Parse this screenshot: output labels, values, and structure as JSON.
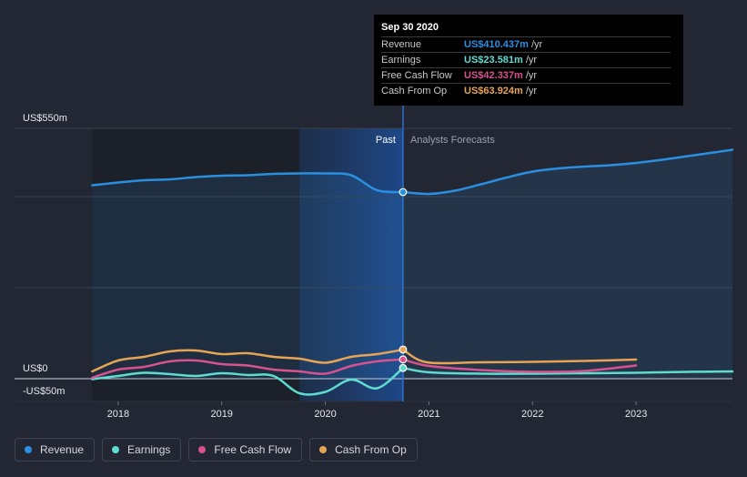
{
  "chart_data": {
    "type": "line",
    "y_unit_label_top": "US$550m",
    "y_zero_label": "US$0",
    "y_neg_label": "-US$50m",
    "ylim": [
      -50,
      550
    ],
    "xlim": [
      2017.0,
      2023.93
    ],
    "x_ticks": [
      {
        "value": 2018.0,
        "label": "2018"
      },
      {
        "value": 2019.0,
        "label": "2019"
      },
      {
        "value": 2020.0,
        "label": "2020"
      },
      {
        "value": 2021.0,
        "label": "2021"
      },
      {
        "value": 2022.0,
        "label": "2022"
      },
      {
        "value": 2023.0,
        "label": "2023"
      }
    ],
    "y_gridlines": [
      550,
      400,
      200,
      0
    ],
    "divider_x": 2020.75,
    "highlight_start_x": 2019.75,
    "past_label": "Past",
    "forecast_label": "Analysts Forecasts",
    "series": [
      {
        "name": "Revenue",
        "color": "#2b8fdf",
        "area": true,
        "points": [
          [
            2017.75,
            425
          ],
          [
            2018.0,
            431
          ],
          [
            2018.25,
            436
          ],
          [
            2018.5,
            438
          ],
          [
            2018.75,
            443
          ],
          [
            2019.0,
            446
          ],
          [
            2019.25,
            447
          ],
          [
            2019.5,
            450
          ],
          [
            2019.75,
            451
          ],
          [
            2020.0,
            451
          ],
          [
            2020.25,
            447
          ],
          [
            2020.5,
            414
          ],
          [
            2020.75,
            410
          ]
        ],
        "forecast": [
          [
            2020.75,
            410
          ],
          [
            2021.0,
            406
          ],
          [
            2021.25,
            413
          ],
          [
            2021.5,
            427
          ],
          [
            2021.75,
            442
          ],
          [
            2022.0,
            455
          ],
          [
            2022.25,
            462
          ],
          [
            2022.5,
            466
          ],
          [
            2022.75,
            469
          ],
          [
            2023.0,
            474
          ],
          [
            2023.25,
            481
          ],
          [
            2023.5,
            489
          ],
          [
            2023.75,
            497
          ],
          [
            2023.93,
            503
          ]
        ]
      },
      {
        "name": "Earnings",
        "color": "#5fdcd0",
        "points": [
          [
            2017.75,
            -1
          ],
          [
            2018.0,
            6
          ],
          [
            2018.25,
            13
          ],
          [
            2018.5,
            10
          ],
          [
            2018.75,
            6
          ],
          [
            2019.0,
            12
          ],
          [
            2019.25,
            8
          ],
          [
            2019.5,
            6
          ],
          [
            2019.75,
            -32
          ],
          [
            2020.0,
            -29
          ],
          [
            2020.25,
            -2
          ],
          [
            2020.5,
            -21
          ],
          [
            2020.75,
            23.581
          ]
        ],
        "forecast": [
          [
            2020.75,
            23.581
          ],
          [
            2021.0,
            14
          ],
          [
            2021.5,
            11
          ],
          [
            2022.0,
            11
          ],
          [
            2022.5,
            12
          ],
          [
            2023.0,
            13
          ],
          [
            2023.5,
            15
          ],
          [
            2023.93,
            16
          ]
        ]
      },
      {
        "name": "Free Cash Flow",
        "color": "#d8528e",
        "points": [
          [
            2017.75,
            2
          ],
          [
            2018.0,
            20
          ],
          [
            2018.25,
            26
          ],
          [
            2018.5,
            38
          ],
          [
            2018.75,
            40
          ],
          [
            2019.0,
            32
          ],
          [
            2019.25,
            29
          ],
          [
            2019.5,
            20
          ],
          [
            2019.75,
            16
          ],
          [
            2020.0,
            11
          ],
          [
            2020.25,
            28
          ],
          [
            2020.5,
            38
          ],
          [
            2020.75,
            42.337
          ]
        ],
        "forecast": [
          [
            2020.75,
            42.337
          ],
          [
            2021.0,
            28
          ],
          [
            2021.5,
            19
          ],
          [
            2022.0,
            15
          ],
          [
            2022.5,
            17
          ],
          [
            2023.0,
            29
          ]
        ]
      },
      {
        "name": "Cash From Op",
        "color": "#e8a455",
        "points": [
          [
            2017.75,
            16
          ],
          [
            2018.0,
            40
          ],
          [
            2018.25,
            48
          ],
          [
            2018.5,
            60
          ],
          [
            2018.75,
            62
          ],
          [
            2019.0,
            54
          ],
          [
            2019.25,
            56
          ],
          [
            2019.5,
            48
          ],
          [
            2019.75,
            44
          ],
          [
            2020.0,
            35
          ],
          [
            2020.25,
            48
          ],
          [
            2020.5,
            54
          ],
          [
            2020.75,
            63.924
          ]
        ],
        "forecast": [
          [
            2020.75,
            63.924
          ],
          [
            2020.98,
            36
          ],
          [
            2021.5,
            36
          ],
          [
            2022.0,
            37
          ],
          [
            2022.5,
            39
          ],
          [
            2023.0,
            42
          ]
        ]
      }
    ]
  },
  "tooltip": {
    "date": "Sep 30 2020",
    "rows": [
      {
        "label": "Revenue",
        "value": "US$410.437m",
        "unit": "/yr",
        "color": "#2b8fdf"
      },
      {
        "label": "Earnings",
        "value": "US$23.581m",
        "unit": "/yr",
        "color": "#5fdcd0"
      },
      {
        "label": "Free Cash Flow",
        "value": "US$42.337m",
        "unit": "/yr",
        "color": "#d8528e"
      },
      {
        "label": "Cash From Op",
        "value": "US$63.924m",
        "unit": "/yr",
        "color": "#e8a455"
      }
    ]
  },
  "legend": [
    {
      "label": "Revenue",
      "color": "#2b8fdf"
    },
    {
      "label": "Earnings",
      "color": "#5fdcd0"
    },
    {
      "label": "Free Cash Flow",
      "color": "#d8528e"
    },
    {
      "label": "Cash From Op",
      "color": "#e8a455"
    }
  ]
}
